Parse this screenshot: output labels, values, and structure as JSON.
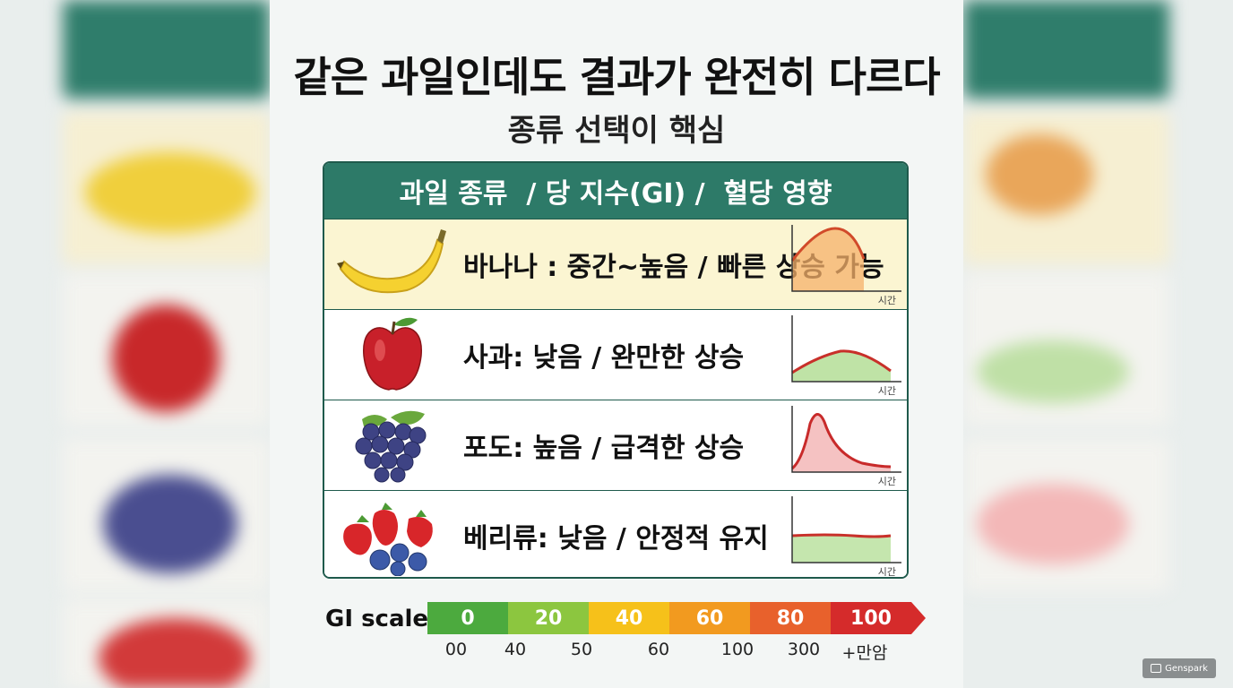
{
  "title": "같은 과일인데도 결과가 완전히 다르다",
  "subtitle": "종류 선택이 핵심",
  "table": {
    "header": "과일 종류  / 당 지수(GI) /  혈당 영향",
    "rows": [
      {
        "fruit_icon": "banana-icon",
        "text": "바나나 : 중간~높음 / 빠른 상승 가능",
        "curve": "medium-high",
        "time_label": "시간"
      },
      {
        "fruit_icon": "apple-icon",
        "text": "사과: 낮음 / 완만한 상승",
        "curve": "gradual",
        "time_label": "시간"
      },
      {
        "fruit_icon": "grapes-icon",
        "text": "포도: 높음 / 급격한 상승",
        "curve": "sharp",
        "time_label": "시간"
      },
      {
        "fruit_icon": "berries-icon",
        "text": "베리류: 낮음 / 안정적 유지",
        "curve": "stable",
        "time_label": "시간"
      }
    ]
  },
  "gi_scale": {
    "label": "GI scale",
    "segments": [
      {
        "label": "0",
        "color": "#4caa3e"
      },
      {
        "label": "20",
        "color": "#8cc63f"
      },
      {
        "label": "40",
        "color": "#f6c11a"
      },
      {
        "label": "60",
        "color": "#f29a1f"
      },
      {
        "label": "80",
        "color": "#e8612c"
      },
      {
        "label": "100",
        "color": "#d52b2b"
      }
    ],
    "ticks": [
      "00",
      "40",
      "50",
      "60",
      "100",
      "300",
      "+만암"
    ]
  },
  "watermark": "Genspark"
}
